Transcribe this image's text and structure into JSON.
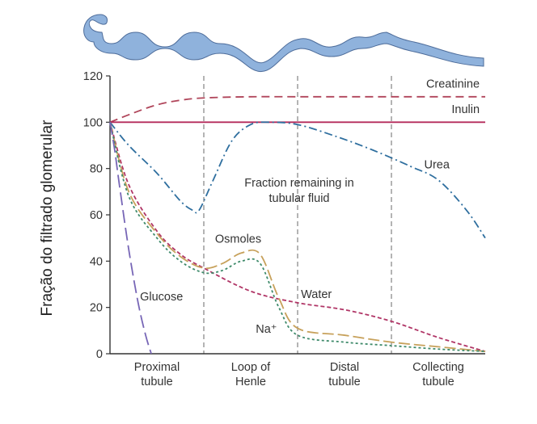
{
  "chart_data": {
    "type": "line",
    "ylabel": "Fração do filtrado glomerular",
    "ylim": [
      0,
      120
    ],
    "yticks": [
      0,
      20,
      40,
      60,
      80,
      100,
      120
    ],
    "xlim": [
      0,
      4
    ],
    "segments": [
      {
        "label": "Proximal tubule",
        "lines": [
          "Proximal",
          "tubule"
        ]
      },
      {
        "label": "Loop of Henle",
        "lines": [
          "Loop of",
          "Henle"
        ]
      },
      {
        "label": "Distal tubule",
        "lines": [
          "Distal",
          "tubule"
        ]
      },
      {
        "label": "Collecting tubule",
        "lines": [
          "Collecting",
          "tubule"
        ]
      }
    ],
    "annotations": {
      "fraction_line1": "Fraction remaining in",
      "fraction_line2": "tubular fluid"
    },
    "series": [
      {
        "name": "Creatinine",
        "color": "#b0455a",
        "dash": "10 6",
        "x": [
          0,
          0.25,
          0.5,
          0.75,
          1.0,
          1.5,
          2.0,
          3.0,
          4.0
        ],
        "y": [
          100,
          104,
          107.5,
          109.5,
          110.5,
          111,
          111,
          111,
          111
        ]
      },
      {
        "name": "Inulin",
        "color": "#b52a5a",
        "dash": "",
        "x": [
          0,
          4.0
        ],
        "y": [
          100,
          100
        ]
      },
      {
        "name": "Urea",
        "color": "#2f6f9f",
        "dash": "10 4 2 4",
        "x": [
          0,
          0.2,
          0.5,
          0.75,
          0.88,
          0.95,
          1.1,
          1.3,
          1.5,
          1.7,
          2.0,
          2.4,
          2.8,
          3.2,
          3.5,
          3.8,
          4.0
        ],
        "y": [
          100,
          90,
          78,
          66,
          62,
          62,
          75,
          92,
          99,
          100,
          99,
          94,
          88,
          81,
          75,
          62,
          50
        ]
      },
      {
        "name": "Water",
        "color": "#b03566",
        "dash": "5 3",
        "x": [
          0,
          0.2,
          0.5,
          0.75,
          1.0,
          1.5,
          2.0,
          2.5,
          3.0,
          3.5,
          4.0
        ],
        "y": [
          100,
          73,
          53,
          43,
          37,
          27,
          22,
          19,
          14,
          7,
          1
        ]
      },
      {
        "name": "Osmoles",
        "color": "#c7a15b",
        "dash": "14 5",
        "x": [
          0,
          0.2,
          0.5,
          0.75,
          1.0,
          1.2,
          1.4,
          1.6,
          1.8,
          2.0,
          2.5,
          3.0,
          3.5,
          4.0
        ],
        "y": [
          100,
          70,
          52,
          42,
          37,
          39,
          43.5,
          43,
          24,
          11,
          8,
          5,
          3,
          1
        ]
      },
      {
        "name": "Na⁺",
        "color": "#3e8a6a",
        "dash": "3 3",
        "x": [
          0,
          0.2,
          0.5,
          0.75,
          1.0,
          1.2,
          1.4,
          1.6,
          1.8,
          2.0,
          2.5,
          3.0,
          3.5,
          4.0
        ],
        "y": [
          100,
          68,
          50,
          40,
          35,
          36,
          40,
          39,
          20,
          8,
          5,
          3.5,
          2,
          1
        ]
      },
      {
        "name": "Glucose",
        "color": "#7766b6",
        "dash": "16 6",
        "x": [
          0,
          0.05,
          0.1,
          0.2,
          0.3,
          0.38,
          0.44
        ],
        "y": [
          100,
          88,
          73,
          45,
          22,
          8,
          0
        ]
      }
    ]
  },
  "icon": "nephron-tubule-icon",
  "tubule_color": "#8fb2dc",
  "tubule_outline": "#4d6c9a"
}
